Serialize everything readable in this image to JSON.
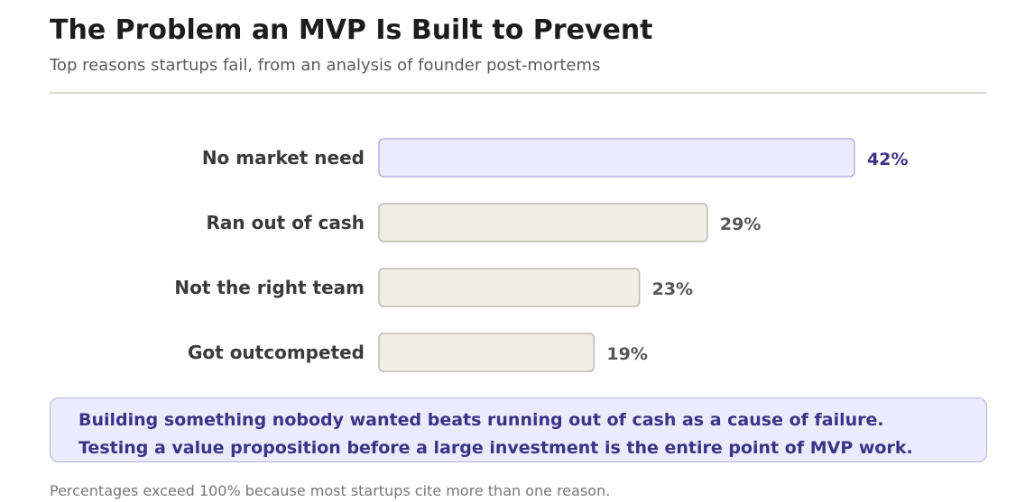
{
  "header": {
    "title": "The Problem an MVP Is Built to Prevent",
    "subtitle": "Top reasons startups fail, from an analysis of founder post-mortems"
  },
  "chart_data": {
    "type": "bar",
    "orientation": "horizontal",
    "categories": [
      "No market need",
      "Ran out of cash",
      "Not the right team",
      "Got outcompeted"
    ],
    "values": [
      42,
      29,
      23,
      19
    ],
    "value_labels": [
      "42%",
      "29%",
      "23%",
      "19%"
    ],
    "unit": "%",
    "highlight_index": 0,
    "colors": {
      "highlight_fill": "#ecebfd",
      "highlight_stroke": "#b5b0ea",
      "highlight_label": "#3a3487",
      "bar_fill": "#f1eee6",
      "bar_stroke": "#bdbab0",
      "category_label": "#3a3a3a",
      "value_label": "#555555"
    }
  },
  "callout": {
    "line1": "Building something nobody wanted beats running out of cash as a cause of failure.",
    "line2": "Testing a value proposition before a large investment is the entire point of MVP work."
  },
  "footnote": "Percentages exceed 100% because most startups cite more than one reason."
}
